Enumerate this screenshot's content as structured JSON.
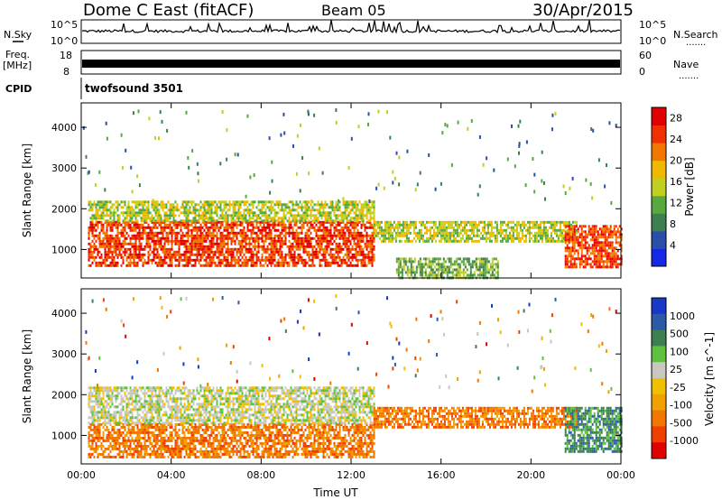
{
  "header": {
    "station": "Dome C East (fitACF)",
    "beam": "Beam 05",
    "date": "30/Apr/2015"
  },
  "left_labels": {
    "nsky": "N.Sky",
    "freq": "Freq.",
    "freq_unit": "[MHz]",
    "cpid": "CPID"
  },
  "right_labels": {
    "nsearch": "N.Search",
    "nave": "Nave",
    "dots": "......."
  },
  "cpid_value": "twofsound 3501",
  "noise_panel": {
    "left_ticks": [
      "10^5",
      "10^0"
    ],
    "right_ticks": [
      "10^5",
      "10^0"
    ]
  },
  "freq_panel": {
    "left_ticks": [
      "18",
      "8"
    ],
    "right_ticks": [
      "60",
      "0"
    ]
  },
  "colors": {
    "power_scale": [
      "#1428e8",
      "#2a4fa8",
      "#3c8050",
      "#58a840",
      "#c0d020",
      "#f0b800",
      "#f07800",
      "#f03000",
      "#e00000"
    ],
    "velocity_scale": [
      "#e00000",
      "#f04000",
      "#f07800",
      "#f0a000",
      "#f0c000",
      "#c8c8c0",
      "#60c040",
      "#3c8050",
      "#2a5aa8",
      "#1838c8"
    ]
  },
  "chart_data": [
    {
      "type": "heatmap",
      "title": "",
      "ylabel": "Slant Range [km]",
      "xlabel": "",
      "x_ticks": [
        "00:00",
        "04:00",
        "08:00",
        "12:00",
        "16:00",
        "20:00",
        "00:00"
      ],
      "y_ticks": [
        1000,
        2000,
        3000,
        4000
      ],
      "ylim": [
        300,
        4600
      ],
      "xlim_hours": [
        0,
        24
      ],
      "colorbar": {
        "label": "Power [dB]",
        "ticks": [
          4,
          8,
          12,
          16,
          20,
          24,
          28
        ],
        "range": [
          0,
          30
        ]
      },
      "regions": [
        {
          "t": [
            0.3,
            13.0
          ],
          "r": [
            600,
            1700
          ],
          "level": 26
        },
        {
          "t": [
            0.3,
            13.0
          ],
          "r": [
            1700,
            2200
          ],
          "level": 14
        },
        {
          "t": [
            13.0,
            22.0
          ],
          "r": [
            1200,
            1700
          ],
          "level": 16
        },
        {
          "t": [
            14.0,
            18.5
          ],
          "r": [
            300,
            800
          ],
          "level": 10
        },
        {
          "t": [
            21.5,
            24.0
          ],
          "r": [
            600,
            1600
          ],
          "level": 26
        }
      ]
    },
    {
      "type": "heatmap",
      "title": "",
      "ylabel": "Slant Range [km]",
      "xlabel": "Time UT",
      "x_ticks": [
        "00:00",
        "04:00",
        "08:00",
        "12:00",
        "16:00",
        "20:00",
        "00:00"
      ],
      "y_ticks": [
        1000,
        2000,
        3000,
        4000
      ],
      "ylim": [
        300,
        4600
      ],
      "xlim_hours": [
        0,
        24
      ],
      "colorbar": {
        "label": "Velocity [m s^-1]",
        "ticks": [
          1000,
          500,
          100,
          25,
          -25,
          -100,
          -500,
          -1000
        ]
      },
      "regions": [
        {
          "t": [
            0.3,
            13.0
          ],
          "r": [
            500,
            1300
          ],
          "level": -100
        },
        {
          "t": [
            0.3,
            13.0
          ],
          "r": [
            1300,
            2200
          ],
          "level": 0
        },
        {
          "t": [
            13.0,
            22.0
          ],
          "r": [
            1200,
            1700
          ],
          "level": -100
        },
        {
          "t": [
            21.5,
            24.0
          ],
          "r": [
            600,
            1700
          ],
          "level": 100
        }
      ]
    }
  ]
}
